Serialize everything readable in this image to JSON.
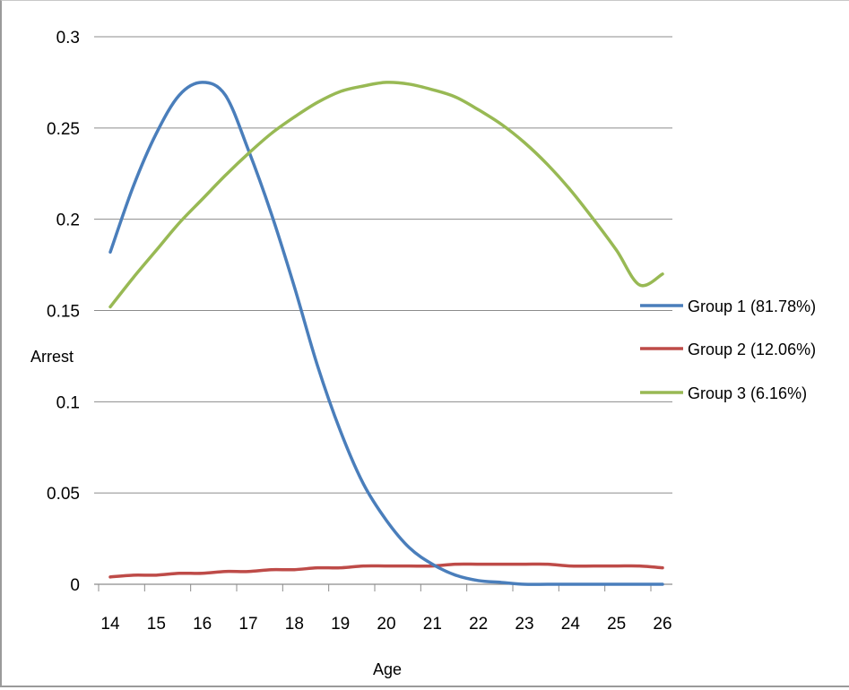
{
  "chart_data": {
    "type": "line",
    "title": "",
    "xlabel": "Age",
    "ylabel": "Arrest",
    "categories": [
      "14",
      "15",
      "16",
      "17",
      "18",
      "19",
      "20",
      "21",
      "22",
      "23",
      "24",
      "25",
      "26"
    ],
    "x": [
      14,
      14.5,
      15,
      15.5,
      16,
      16.5,
      17,
      17.5,
      18,
      18.5,
      19,
      19.5,
      20,
      20.5,
      21,
      21.5,
      22,
      22.5,
      23,
      23.5,
      24,
      24.5,
      25,
      25.5,
      26
    ],
    "ylim": [
      0,
      0.3
    ],
    "yticks": [
      "0",
      "0.05",
      "0.1",
      "0.15",
      "0.2",
      "0.25",
      "0.3"
    ],
    "ytick_values": [
      0,
      0.05,
      0.1,
      0.15,
      0.2,
      0.25,
      0.3
    ],
    "grid": true,
    "legend_position": "right",
    "series": [
      {
        "name": "Group 1 (81.78%)",
        "color": "#4a7ebb",
        "values": [
          0.182,
          0.218,
          0.247,
          0.268,
          0.275,
          0.268,
          0.238,
          0.203,
          0.163,
          0.12,
          0.084,
          0.055,
          0.035,
          0.02,
          0.011,
          0.005,
          0.002,
          0.001,
          0.0,
          0.0,
          0.0,
          0.0,
          0.0,
          0.0,
          0.0
        ]
      },
      {
        "name": "Group 2 (12.06%)",
        "color": "#be4b48",
        "values": [
          0.004,
          0.005,
          0.005,
          0.006,
          0.006,
          0.007,
          0.007,
          0.008,
          0.008,
          0.009,
          0.009,
          0.01,
          0.01,
          0.01,
          0.01,
          0.011,
          0.011,
          0.011,
          0.011,
          0.011,
          0.01,
          0.01,
          0.01,
          0.01,
          0.009
        ]
      },
      {
        "name": "Group 3 (6.16%)",
        "color": "#98b954",
        "values": [
          0.152,
          0.168,
          0.183,
          0.198,
          0.211,
          0.224,
          0.236,
          0.247,
          0.256,
          0.264,
          0.27,
          0.273,
          0.275,
          0.274,
          0.271,
          0.267,
          0.26,
          0.252,
          0.242,
          0.23,
          0.216,
          0.2,
          0.183,
          0.164,
          0.17
        ]
      }
    ]
  }
}
